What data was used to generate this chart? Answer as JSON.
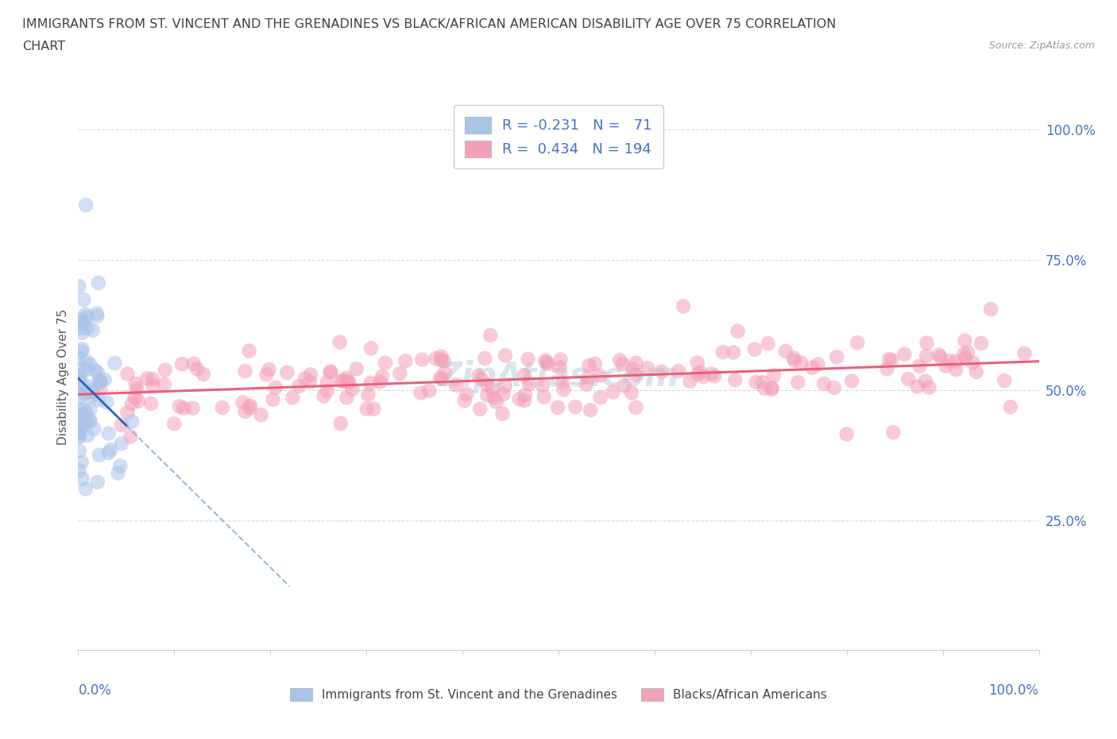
{
  "title_line1": "IMMIGRANTS FROM ST. VINCENT AND THE GRENADINES VS BLACK/AFRICAN AMERICAN DISABILITY AGE OVER 75 CORRELATION",
  "title_line2": "CHART",
  "source_text": "Source: ZipAtlas.com",
  "ylabel": "Disability Age Over 75",
  "color_blue": "#A8C4E8",
  "color_pink": "#F4A0B8",
  "color_trend_blue_solid": "#3060C0",
  "color_trend_blue_dash": "#90B8E0",
  "color_trend_pink": "#E8607A",
  "axis_label_color": "#4472C4",
  "background_color": "#FFFFFF",
  "grid_color": "#D8D8D8",
  "watermark_color": "#D8E4F0"
}
